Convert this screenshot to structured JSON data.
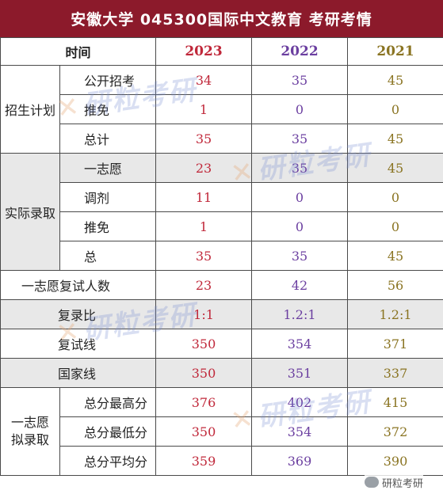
{
  "title": "安徽大学  045300国际中文教育  考研考情",
  "header": {
    "label": "时间",
    "years": [
      "2023",
      "2022",
      "2021"
    ]
  },
  "sections": {
    "plan": {
      "label": "招生计划",
      "rows": [
        {
          "label": "公开招考",
          "values": [
            "34",
            "35",
            "45"
          ]
        },
        {
          "label": "推免",
          "values": [
            "1",
            "0",
            "0"
          ]
        },
        {
          "label": "总计",
          "values": [
            "35",
            "35",
            "45"
          ]
        }
      ]
    },
    "admit": {
      "label": "实际录取",
      "rows": [
        {
          "label": "一志愿",
          "values": [
            "23",
            "35",
            "45"
          ]
        },
        {
          "label": "调剂",
          "values": [
            "11",
            "0",
            "0"
          ]
        },
        {
          "label": "推免",
          "values": [
            "1",
            "0",
            "0"
          ]
        },
        {
          "label": "总",
          "values": [
            "35",
            "35",
            "45"
          ]
        }
      ]
    },
    "first_retest": {
      "label": "一志愿复试人数",
      "values": [
        "23",
        "42",
        "56"
      ]
    },
    "ratio": {
      "label": "复录比",
      "values": [
        "1:1",
        "1.2:1",
        "1.2:1"
      ]
    },
    "retest_line": {
      "label": "复试线",
      "values": [
        "350",
        "354",
        "371"
      ]
    },
    "national_line": {
      "label": "国家线",
      "values": [
        "350",
        "351",
        "337"
      ]
    },
    "scores": {
      "label": "一志愿拟录取",
      "rows": [
        {
          "label": "总分最高分",
          "values": [
            "376",
            "402",
            "415"
          ]
        },
        {
          "label": "总分最低分",
          "values": [
            "350",
            "354",
            "372"
          ]
        },
        {
          "label": "总分平均分",
          "values": [
            "359",
            "369",
            "390"
          ]
        }
      ]
    }
  },
  "watermark": "研粒考研",
  "corner_logo": "研粒考研",
  "colors": {
    "title_bg": "#8c1a2b",
    "year_2023": "#c0283a",
    "year_2022": "#6b3fa0",
    "year_2021": "#8a7422",
    "shade": "#e8e8e8"
  }
}
